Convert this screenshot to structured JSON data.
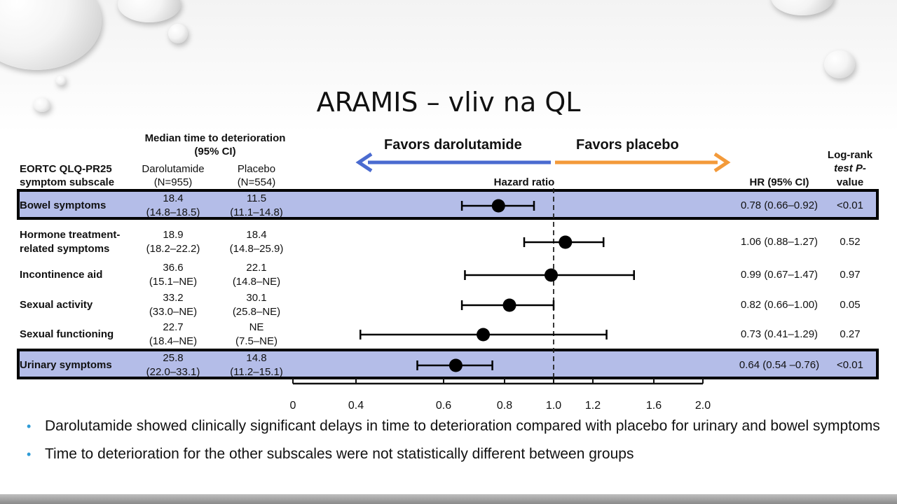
{
  "slide": {
    "title": "ARAMIS – vliv na QL",
    "bullets": [
      "Darolutamide showed clinically significant delays in  time to deterioration compared with placebo for urinary and bowel symptoms",
      "Time to deterioration for the other subscales were not statistically different  between groups"
    ]
  },
  "header": {
    "median_title_1": "Median time to deterioration",
    "median_title_2": "(95% CI)",
    "subscale_1": "EORTC QLQ-PR25",
    "subscale_2": "symptom subscale",
    "daro_1": "Darolutamide",
    "daro_2": "(N=955)",
    "pbo_1": "Placebo",
    "pbo_2": "(N=554)",
    "favors_daro": "Favors darolutamide",
    "favors_pbo": "Favors placebo",
    "hazard_ratio": "Hazard ratio",
    "hr_ci": "HR (95% CI)",
    "logrank_1": "Log-rank",
    "logrank_2": "test P-",
    "logrank_3": "value"
  },
  "colors": {
    "highlight": "#b4bde8",
    "arrow_left": "#4a6bd0",
    "arrow_right": "#f39a3a"
  },
  "chart_data": {
    "type": "forest",
    "xlabel": "Hazard ratio",
    "x_ticks": [
      "0",
      "0.4",
      "0.6",
      "0.8",
      "1.0",
      "1.2",
      "1.6",
      "2.0"
    ],
    "reference_line": 1.0,
    "rows": [
      {
        "label": "Bowel symptoms",
        "label2": "",
        "daro": "18.4",
        "daro_ci": "(14.8–18.5)",
        "pbo": "11.5",
        "pbo_ci": "(11.1–14.8)",
        "hr": 0.78,
        "lo": 0.66,
        "hi": 0.92,
        "hr_text": "0.78 (0.66–0.92)",
        "p": "<0.01",
        "highlight": true
      },
      {
        "label": "Hormone treatment-",
        "label2": "related symptoms",
        "daro": "18.9",
        "daro_ci": "(18.2–22.2)",
        "pbo": "18.4",
        "pbo_ci": "(14.8–25.9)",
        "hr": 1.06,
        "lo": 0.88,
        "hi": 1.27,
        "hr_text": "1.06 (0.88–1.27)",
        "p": "0.52",
        "highlight": false
      },
      {
        "label": "Incontinence aid",
        "label2": "",
        "daro": "36.6",
        "daro_ci": "(15.1–NE)",
        "pbo": "22.1",
        "pbo_ci": "(14.8–NE)",
        "hr": 0.99,
        "lo": 0.67,
        "hi": 1.47,
        "hr_text": "0.99 (0.67–1.47)",
        "p": "0.97",
        "highlight": false
      },
      {
        "label": "Sexual activity",
        "label2": "",
        "daro": "33.2",
        "daro_ci": "(33.0–NE)",
        "pbo": "30.1",
        "pbo_ci": "(25.8–NE)",
        "hr": 0.82,
        "lo": 0.66,
        "hi": 1.0,
        "hr_text": "0.82 (0.66–1.00)",
        "p": "0.05",
        "highlight": false
      },
      {
        "label": "Sexual functioning",
        "label2": "",
        "daro": "22.7",
        "daro_ci": "(18.4–NE)",
        "pbo": "NE",
        "pbo_ci": "(7.5–NE)",
        "hr": 0.73,
        "lo": 0.41,
        "hi": 1.29,
        "hr_text": "0.73 (0.41–1.29)",
        "p": "0.27",
        "highlight": false
      },
      {
        "label": "Urinary symptoms",
        "label2": "",
        "daro": "25.8",
        "daro_ci": "(22.0–33.1)",
        "pbo": "14.8",
        "pbo_ci": "(11.2–15.1)",
        "hr": 0.64,
        "lo": 0.54,
        "hi": 0.76,
        "hr_text": "0.64 (0.54 –0.76)",
        "p": "<0.01",
        "highlight": true
      }
    ]
  }
}
